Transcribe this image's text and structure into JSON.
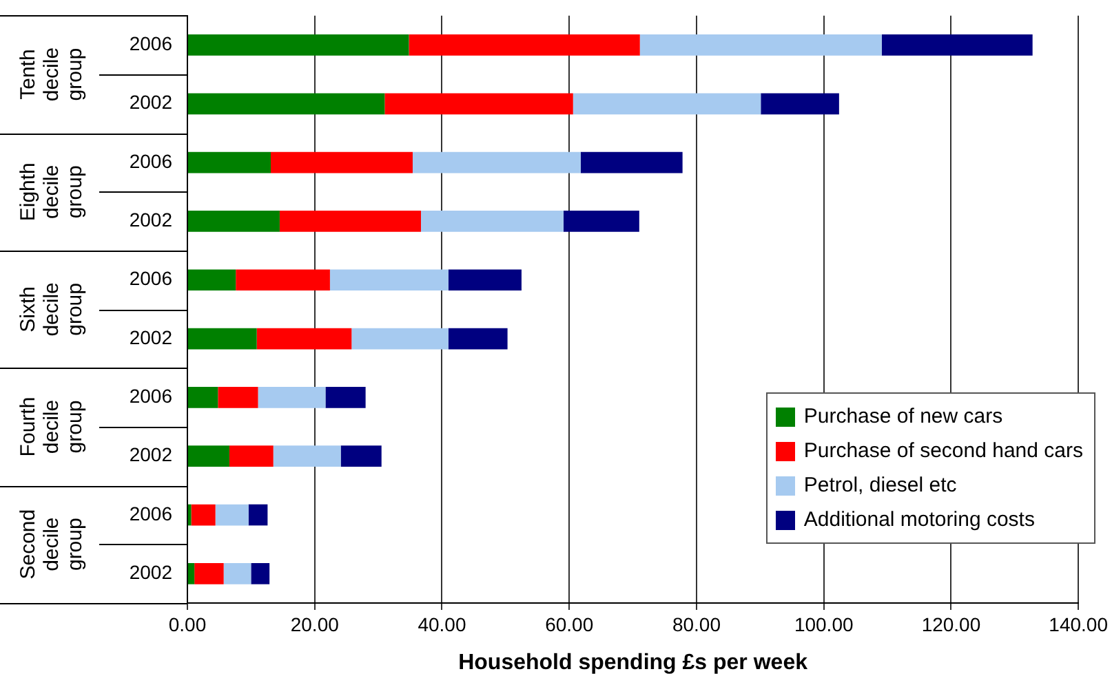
{
  "chart_data": {
    "type": "bar",
    "orientation": "horizontal",
    "stacked": true,
    "xlabel": "Household spending £s per week",
    "categories": [
      "2006",
      "2002",
      "2006",
      "2002",
      "2006",
      "2002",
      "2006",
      "2002",
      "2006",
      "2002"
    ],
    "annotations": [
      "Tenth decile group",
      "Eighth decile group",
      "Sixth decile group",
      "Fourth decile group",
      "Second decile group"
    ],
    "series": [
      {
        "name": "Purchase of new cars",
        "color": "#008000",
        "values": [
          34.8,
          31.0,
          13.1,
          14.5,
          7.6,
          10.9,
          4.8,
          6.6,
          0.6,
          1.1
        ]
      },
      {
        "name": "Purchase of second hand cars",
        "color": "#ff0000",
        "values": [
          36.3,
          29.6,
          22.3,
          22.2,
          14.8,
          14.9,
          6.3,
          6.9,
          3.8,
          4.6
        ]
      },
      {
        "name": "Petrol, diesel etc",
        "color": "#a6caf0",
        "values": [
          38.0,
          29.5,
          26.4,
          22.4,
          18.6,
          15.2,
          10.6,
          10.6,
          5.2,
          4.3
        ]
      },
      {
        "name": "Additional motoring costs",
        "color": "#000080",
        "values": [
          23.7,
          12.3,
          16.0,
          11.9,
          11.5,
          9.3,
          6.3,
          6.4,
          3.0,
          2.9
        ]
      }
    ],
    "xlim": [
      0,
      140
    ],
    "xticks": [
      {
        "value": 0,
        "label": "0.00"
      },
      {
        "value": 20,
        "label": "20.00"
      },
      {
        "value": 40,
        "label": "40.00"
      },
      {
        "value": 60,
        "label": "60.00"
      },
      {
        "value": 80,
        "label": "80.00"
      },
      {
        "value": 100,
        "label": "100.00"
      },
      {
        "value": 120,
        "label": "120.00"
      },
      {
        "value": 140,
        "label": "140.00"
      }
    ],
    "grid": "x",
    "legend": "bottom right"
  }
}
